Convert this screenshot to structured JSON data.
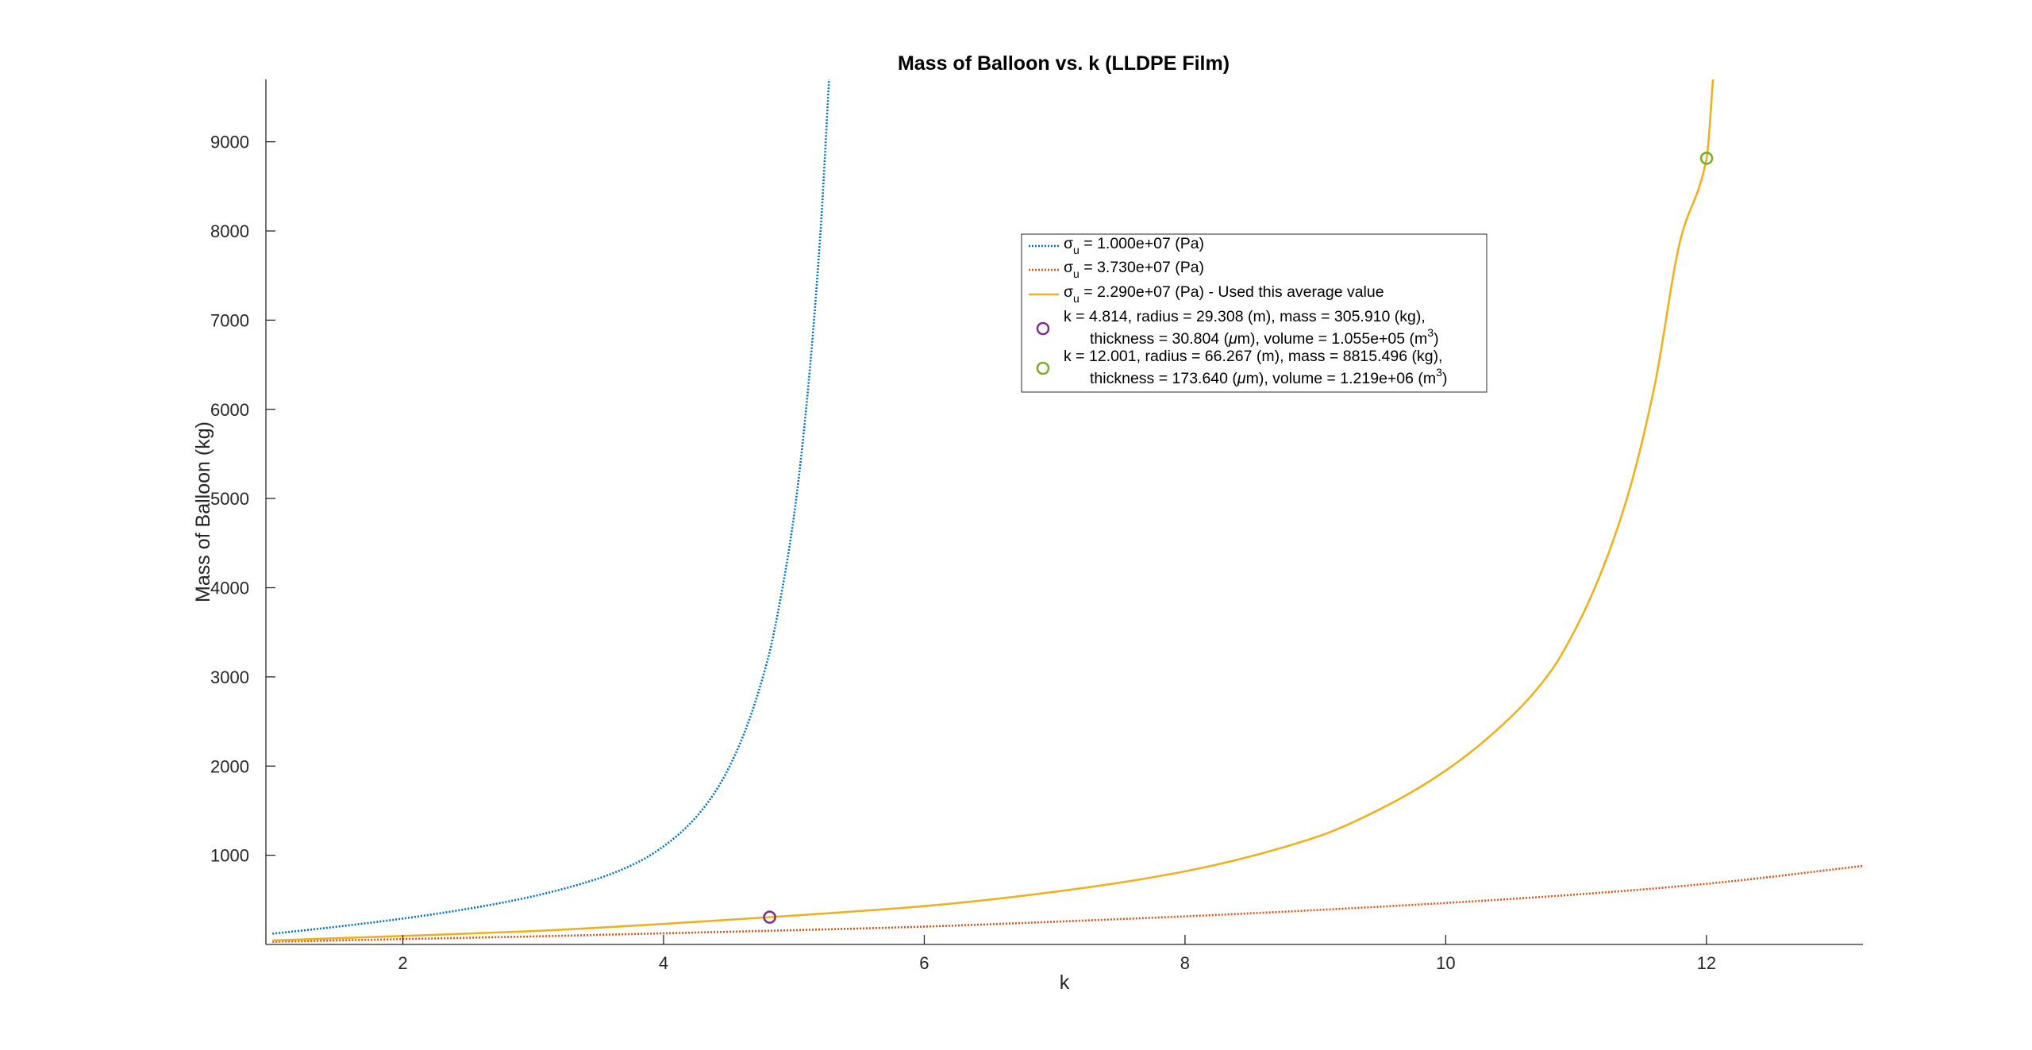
{
  "chart_data": {
    "type": "line",
    "title": "Mass of Balloon vs. k (LLDPE Film)",
    "xlabel": "k",
    "ylabel": "Mass of Balloon (kg)",
    "xlim": [
      0.95,
      13.2
    ],
    "ylim": [
      0,
      9700
    ],
    "xticks": [
      2,
      4,
      6,
      8,
      10,
      12
    ],
    "yticks": [
      1000,
      2000,
      3000,
      4000,
      5000,
      6000,
      7000,
      8000,
      9000
    ],
    "grid": false,
    "legend_position": "upper-center",
    "series": [
      {
        "name_symbol": "σ",
        "name_subscript": "u",
        "name_rest": " = 1.000e+07 (Pa)",
        "color": "#0072BD",
        "style": "dotted",
        "x": [
          1.0,
          1.5,
          2.0,
          2.5,
          3.0,
          3.5,
          3.8,
          4.0,
          4.2,
          4.4,
          4.6,
          4.8,
          4.9,
          5.0,
          5.1,
          5.2,
          5.27
        ],
        "y": [
          120,
          200,
          290,
          400,
          540,
          740,
          920,
          1100,
          1350,
          1720,
          2300,
          3200,
          3900,
          4800,
          6100,
          7900,
          9700
        ]
      },
      {
        "name_symbol": "σ",
        "name_subscript": "u",
        "name_rest": " = 3.730e+07 (Pa)",
        "color": "#D95319",
        "style": "dotted",
        "x": [
          1.0,
          2.0,
          3.0,
          4.0,
          5.0,
          6.0,
          7.0,
          8.0,
          9.0,
          10.0,
          11.0,
          12.0,
          13.2
        ],
        "y": [
          30,
          60,
          90,
          125,
          160,
          200,
          255,
          315,
          385,
          465,
          560,
          680,
          880
        ]
      },
      {
        "name_symbol": "σ",
        "name_subscript": "u",
        "name_rest": " = 2.290e+07 (Pa) - Used this average value",
        "color": "#EDB120",
        "style": "solid",
        "x": [
          1.0,
          2.0,
          3.0,
          4.0,
          4.814,
          6.0,
          7.0,
          8.0,
          9.0,
          9.5,
          10.0,
          10.5,
          10.8,
          11.0,
          11.2,
          11.4,
          11.6,
          11.8,
          12.001,
          12.05
        ],
        "y": [
          45,
          95,
          150,
          230,
          306,
          430,
          590,
          820,
          1200,
          1520,
          1950,
          2550,
          3050,
          3550,
          4200,
          5050,
          6250,
          7900,
          8815,
          9700
        ]
      }
    ],
    "markers": [
      {
        "x": 4.814,
        "y": 305.91,
        "color": "#7E2F8E",
        "line1": "k = 4.814, radius = 29.308 (m), mass = 305.910 (kg),",
        "line2_a": "thickness = 30.804 (",
        "line2_mu": "μ",
        "line2_b": "m), volume = 1.055e+05 (m",
        "line2_sup": "3",
        "line2_c": ")"
      },
      {
        "x": 12.001,
        "y": 8815.496,
        "color": "#77AC30",
        "line1": "k = 12.001, radius = 66.267 (m), mass = 8815.496 (kg),",
        "line2_a": "thickness = 173.640 (",
        "line2_mu": "μ",
        "line2_b": "m), volume = 1.219e+06 (m",
        "line2_sup": "3",
        "line2_c": ")"
      }
    ]
  }
}
